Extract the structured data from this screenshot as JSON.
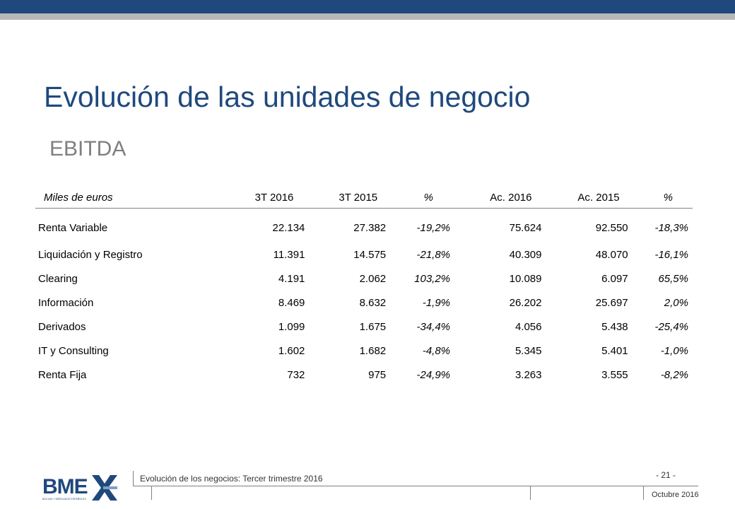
{
  "colors": {
    "brand_dark": "#1f497d",
    "band_grey": "#b7b7b7",
    "subtitle_grey": "#7f7f7f"
  },
  "slide": {
    "title": "Evolución de las unidades de negocio",
    "subtitle": "EBITDA"
  },
  "table": {
    "headers": {
      "label": "Miles de euros",
      "q3_2016": "3T 2016",
      "q3_2015": "3T 2015",
      "pct_q": "%",
      "ac_2016": "Ac. 2016",
      "ac_2015": "Ac. 2015",
      "pct_ac": "%"
    },
    "rows": [
      {
        "label": "Renta Variable",
        "q3_2016": "22.134",
        "q3_2015": "27.382",
        "pct_q": "-19,2%",
        "ac_2016": "75.624",
        "ac_2015": "92.550",
        "pct_ac": "-18,3%"
      },
      {
        "label": "Liquidación y Registro",
        "q3_2016": "11.391",
        "q3_2015": "14.575",
        "pct_q": "-21,8%",
        "ac_2016": "40.309",
        "ac_2015": "48.070",
        "pct_ac": "-16,1%"
      },
      {
        "label": "Clearing",
        "q3_2016": "4.191",
        "q3_2015": "2.062",
        "pct_q": "103,2%",
        "ac_2016": "10.089",
        "ac_2015": "6.097",
        "pct_ac": "65,5%"
      },
      {
        "label": "Información",
        "q3_2016": "8.469",
        "q3_2015": "8.632",
        "pct_q": "-1,9%",
        "ac_2016": "26.202",
        "ac_2015": "25.697",
        "pct_ac": "2,0%"
      },
      {
        "label": "Derivados",
        "q3_2016": "1.099",
        "q3_2015": "1.675",
        "pct_q": "-34,4%",
        "ac_2016": "4.056",
        "ac_2015": "5.438",
        "pct_ac": "-25,4%"
      },
      {
        "label": "IT y Consulting",
        "q3_2016": "1.602",
        "q3_2015": "1.682",
        "pct_q": "-4,8%",
        "ac_2016": "5.345",
        "ac_2015": "5.401",
        "pct_ac": "-1,0%"
      },
      {
        "label": "Renta Fija",
        "q3_2016": "732",
        "q3_2015": "975",
        "pct_q": "-24,9%",
        "ac_2016": "3.263",
        "ac_2015": "3.555",
        "pct_ac": "-8,2%"
      }
    ]
  },
  "footer": {
    "logo_text": "BME",
    "logo_tagline": "BOLSAS Y MERCADOS ESPAÑOLES",
    "section": "Evolución de los negocios: Tercer trimestre 2016",
    "page": "- 21 -",
    "date": "Octubre 2016"
  }
}
